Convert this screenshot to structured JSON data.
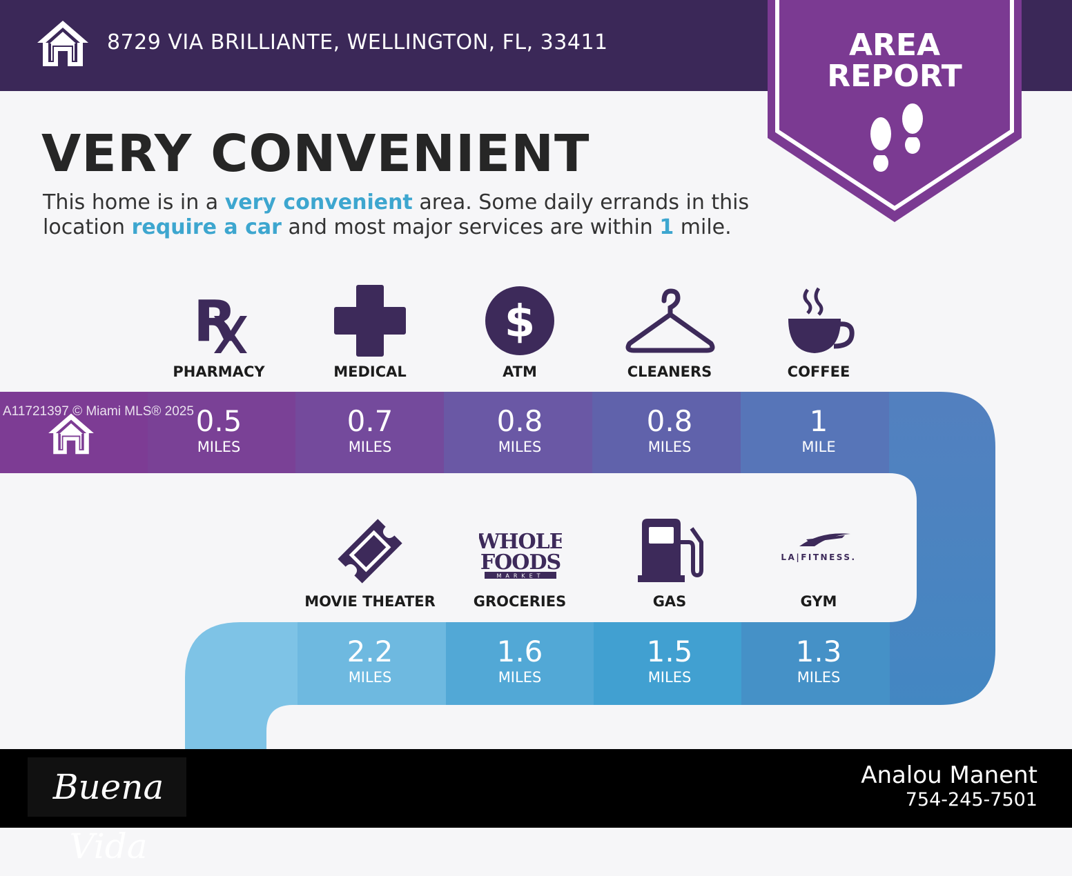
{
  "header": {
    "address": "8729 VIA BRILLIANTE, WELLINGTON, FL, 33411",
    "ribbon_line1": "AREA",
    "ribbon_line2": "REPORT",
    "icon": "home-icon"
  },
  "headline": "VERY CONVENIENT",
  "description": {
    "p1": "This home is in a ",
    "h1": "very convenient",
    "p2": " area. Some daily errands in this location ",
    "h2": "require a car",
    "p3": " and most major services are within ",
    "h3": "1",
    "p4": " mile."
  },
  "row1": [
    {
      "label": "PHARMACY",
      "value": "0.5",
      "unit": "MILES",
      "icon": "rx-icon"
    },
    {
      "label": "MEDICAL",
      "value": "0.7",
      "unit": "MILES",
      "icon": "medical-cross-icon"
    },
    {
      "label": "ATM",
      "value": "0.8",
      "unit": "MILES",
      "icon": "dollar-icon"
    },
    {
      "label": "CLEANERS",
      "value": "0.8",
      "unit": "MILES",
      "icon": "hanger-icon"
    },
    {
      "label": "COFFEE",
      "value": "1",
      "unit": "MILE",
      "icon": "coffee-cup-icon"
    }
  ],
  "row2": [
    {
      "label": "MOVIE THEATER",
      "value": "2.2",
      "unit": "MILES",
      "icon": "ticket-icon"
    },
    {
      "label": "GROCERIES",
      "value": "1.6",
      "unit": "MILES",
      "icon": "whole-foods-logo",
      "logo_text": [
        "WHOLE",
        "FOODS",
        "MARKET"
      ]
    },
    {
      "label": "GAS",
      "value": "1.5",
      "unit": "MILES",
      "icon": "gas-pump-icon"
    },
    {
      "label": "GYM",
      "value": "1.3",
      "unit": "MILES",
      "icon": "la-fitness-logo",
      "logo_text": "LA|FITNESS."
    }
  ],
  "watermark": "A11721397 © Miami MLS® 2025",
  "footer": {
    "brand": "Buena Vida",
    "agent_name": "Analou Manent",
    "agent_phone": "754-245-7501"
  },
  "colors": {
    "header_bg": "#3b2858",
    "ribbon": "#7b3a92",
    "accent": "#3da6cf",
    "icon": "#3d2a5a"
  }
}
